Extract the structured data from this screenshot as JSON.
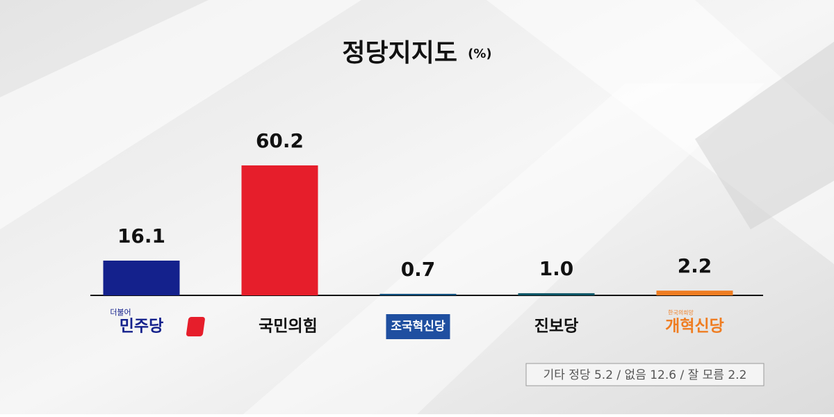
{
  "chart_data": {
    "type": "bar",
    "title": "정당지지도",
    "unit": "(%)",
    "categories": [
      "민주당",
      "국민의힘",
      "조국혁신당",
      "진보당",
      "개혁신당"
    ],
    "category_taglines": [
      "더불어",
      null,
      null,
      null,
      "한국의희망"
    ],
    "values": [
      16.1,
      60.2,
      0.7,
      1.0,
      2.2
    ],
    "value_labels": [
      "16.1",
      "60.2",
      "0.7",
      "1.0",
      "2.2"
    ],
    "colors": [
      "#14218c",
      "#e61e2b",
      "#0a4a7a",
      "#0b5566",
      "#ef7d22"
    ],
    "note": "기타 정당 5.2 / 없음 12.6 / 잘 모름 2.2"
  }
}
